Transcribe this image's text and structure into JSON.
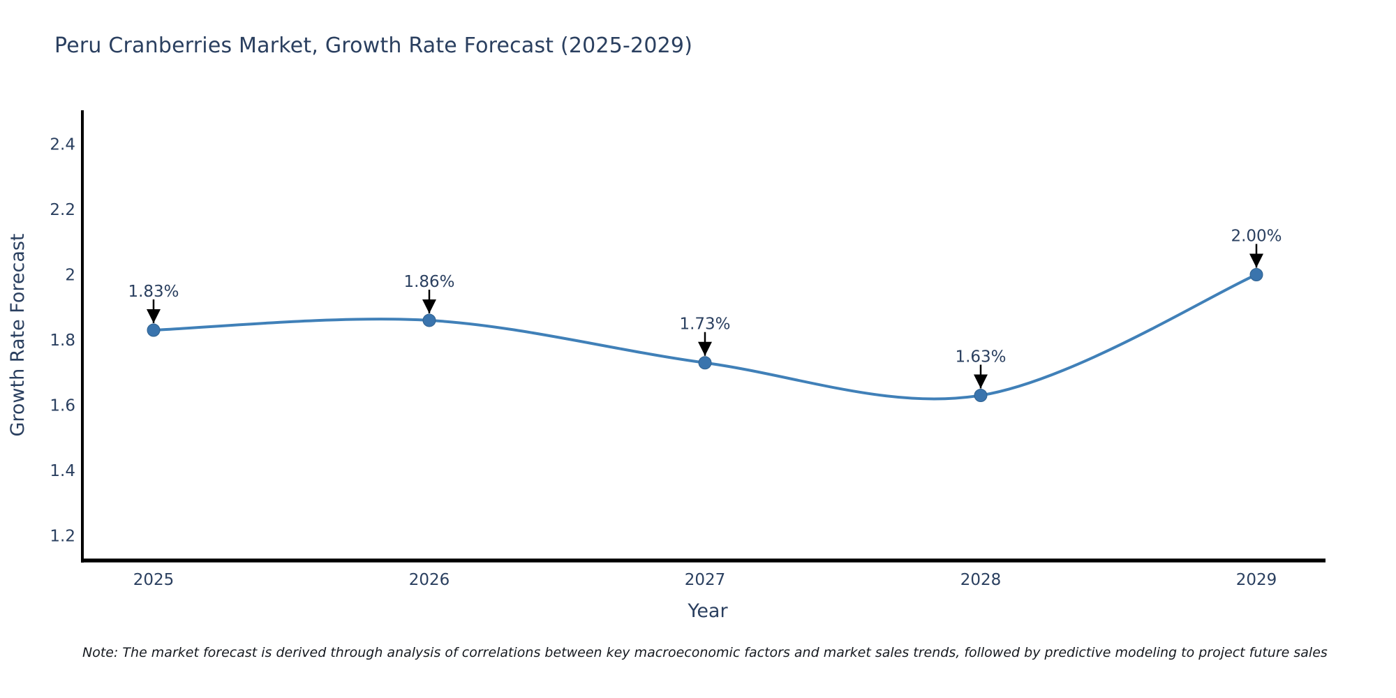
{
  "chart_data": {
    "type": "line",
    "title": "Peru Cranberries Market, Growth Rate Forecast (2025-2029)",
    "xlabel": "Year",
    "ylabel": "Growth Rate Forecast",
    "categories": [
      "2025",
      "2026",
      "2027",
      "2028",
      "2029"
    ],
    "series": [
      {
        "name": "Growth Rate Forecast",
        "values": [
          1.83,
          1.86,
          1.73,
          1.63,
          2.0
        ],
        "point_labels": [
          "1.83%",
          "1.86%",
          "1.73%",
          "1.63%",
          "2.00%"
        ]
      }
    ],
    "yticks": [
      "1.2",
      "1.4",
      "1.6",
      "1.8",
      "2",
      "2.2",
      "2.4"
    ],
    "ylim": [
      1.12,
      2.5
    ],
    "line_shape": "spline",
    "grid": false,
    "legend_position": "none",
    "marker_style": "circle"
  },
  "note": "Note: The market forecast is derived through analysis of correlations between key macroeconomic factors and market sales trends, followed by predictive modeling to project future sales",
  "colors": {
    "line": "#4080b8",
    "marker": "#3a74ad",
    "marker_edge": "#2f618f",
    "text": "#2a3f5f",
    "note_text": "#15191f",
    "axis": "#000000",
    "arrow": "#000000",
    "background": "#ffffff"
  }
}
